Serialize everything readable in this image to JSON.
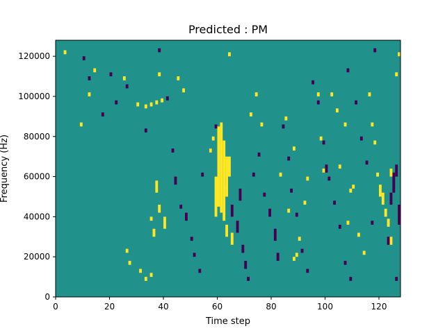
{
  "chart_data": {
    "type": "heatmap",
    "title": "Predicted : PM",
    "xlabel": "Time step",
    "ylabel": "Frequency (Hz)",
    "xlim": [
      0,
      128
    ],
    "ylim": [
      0,
      128000
    ],
    "x_ticks": [
      0,
      20,
      40,
      60,
      80,
      100,
      120
    ],
    "x_tick_labels": [
      "0",
      "20",
      "40",
      "60",
      "80",
      "100",
      "120"
    ],
    "y_ticks": [
      0,
      20000,
      40000,
      60000,
      80000,
      100000,
      120000
    ],
    "y_tick_labels": [
      "0",
      "20000",
      "40000",
      "60000",
      "80000",
      "100000",
      "120000"
    ],
    "rows": 128,
    "colors": {
      "background": "#21918c",
      "high": "#fde725",
      "low": "#440154"
    },
    "cells_high": [
      [
        3,
        121,
        2
      ],
      [
        33,
        94,
        2
      ],
      [
        35,
        95,
        2
      ],
      [
        37,
        96,
        2
      ],
      [
        39,
        97,
        2
      ],
      [
        59,
        40,
        20
      ],
      [
        60,
        45,
        40
      ],
      [
        61,
        42,
        45
      ],
      [
        62,
        38,
        40
      ],
      [
        63,
        50,
        20
      ],
      [
        64,
        60,
        10
      ],
      [
        9,
        85,
        2
      ],
      [
        12,
        100,
        2
      ],
      [
        14,
        112,
        2
      ],
      [
        25,
        108,
        2
      ],
      [
        30,
        95,
        2
      ],
      [
        38,
        110,
        2
      ],
      [
        45,
        108,
        2
      ],
      [
        47,
        102,
        2
      ],
      [
        57,
        72,
        2
      ],
      [
        58,
        78,
        2
      ],
      [
        64,
        120,
        2
      ],
      [
        72,
        90,
        2
      ],
      [
        74,
        100,
        2
      ],
      [
        76,
        85,
        2
      ],
      [
        83,
        60,
        2
      ],
      [
        85,
        88,
        2
      ],
      [
        86,
        42,
        2
      ],
      [
        88,
        73,
        2
      ],
      [
        88,
        18,
        2
      ],
      [
        89,
        20,
        2
      ],
      [
        90,
        28,
        2
      ],
      [
        92,
        46,
        2
      ],
      [
        93,
        58,
        2
      ],
      [
        97,
        100,
        2
      ],
      [
        98,
        78,
        2
      ],
      [
        99,
        62,
        2
      ],
      [
        102,
        100,
        2
      ],
      [
        104,
        92,
        2
      ],
      [
        105,
        64,
        2
      ],
      [
        107,
        85,
        2
      ],
      [
        108,
        36,
        2
      ],
      [
        109,
        52,
        2
      ],
      [
        110,
        54,
        2
      ],
      [
        112,
        30,
        2
      ],
      [
        114,
        21,
        2
      ],
      [
        116,
        100,
        2
      ],
      [
        117,
        85,
        2
      ],
      [
        118,
        76,
        2
      ],
      [
        119,
        60,
        2
      ],
      [
        120,
        50,
        6
      ],
      [
        121,
        46,
        6
      ],
      [
        122,
        40,
        4
      ],
      [
        123,
        35,
        4
      ],
      [
        124,
        26,
        4
      ],
      [
        124,
        60,
        4
      ],
      [
        126,
        110,
        2
      ],
      [
        127,
        120,
        2
      ],
      [
        40,
        34,
        6
      ],
      [
        36,
        30,
        4
      ],
      [
        37,
        52,
        6
      ],
      [
        38,
        42,
        4
      ],
      [
        35,
        38,
        2
      ],
      [
        26,
        22,
        2
      ],
      [
        27,
        16,
        2
      ],
      [
        31,
        12,
        2
      ],
      [
        33,
        8,
        2
      ],
      [
        35,
        10,
        2
      ],
      [
        63,
        30,
        6
      ],
      [
        65,
        26,
        6
      ]
    ],
    "cells_low": [
      [
        10,
        118,
        2
      ],
      [
        12,
        108,
        2
      ],
      [
        17,
        90,
        2
      ],
      [
        20,
        110,
        2
      ],
      [
        22,
        96,
        2
      ],
      [
        26,
        104,
        2
      ],
      [
        33,
        82,
        2
      ],
      [
        38,
        122,
        2
      ],
      [
        41,
        98,
        2
      ],
      [
        43,
        72,
        2
      ],
      [
        44,
        56,
        4
      ],
      [
        46,
        44,
        2
      ],
      [
        48,
        38,
        4
      ],
      [
        50,
        28,
        2
      ],
      [
        51,
        20,
        2
      ],
      [
        53,
        12,
        2
      ],
      [
        54,
        60,
        2
      ],
      [
        57,
        72,
        2
      ],
      [
        59,
        84,
        2
      ],
      [
        61,
        66,
        2
      ],
      [
        63,
        56,
        4
      ],
      [
        65,
        40,
        6
      ],
      [
        67,
        32,
        6
      ],
      [
        68,
        48,
        6
      ],
      [
        69,
        22,
        4
      ],
      [
        70,
        14,
        4
      ],
      [
        71,
        8,
        2
      ],
      [
        73,
        60,
        2
      ],
      [
        75,
        70,
        2
      ],
      [
        77,
        50,
        2
      ],
      [
        79,
        40,
        4
      ],
      [
        81,
        28,
        6
      ],
      [
        82,
        18,
        4
      ],
      [
        84,
        84,
        2
      ],
      [
        86,
        68,
        2
      ],
      [
        87,
        52,
        2
      ],
      [
        89,
        40,
        2
      ],
      [
        91,
        22,
        2
      ],
      [
        93,
        12,
        2
      ],
      [
        95,
        106,
        2
      ],
      [
        97,
        96,
        2
      ],
      [
        99,
        76,
        2
      ],
      [
        101,
        58,
        2
      ],
      [
        103,
        46,
        2
      ],
      [
        105,
        34,
        2
      ],
      [
        107,
        16,
        2
      ],
      [
        109,
        8,
        2
      ],
      [
        111,
        96,
        2
      ],
      [
        113,
        78,
        2
      ],
      [
        115,
        66,
        2
      ],
      [
        117,
        36,
        2
      ],
      [
        123,
        26,
        4
      ],
      [
        124,
        46,
        6
      ],
      [
        125,
        52,
        10
      ],
      [
        126,
        60,
        6
      ],
      [
        127,
        36,
        10
      ],
      [
        126,
        8,
        2
      ],
      [
        118,
        122,
        2
      ],
      [
        108,
        112,
        2
      ],
      [
        100,
        62,
        4
      ]
    ]
  }
}
